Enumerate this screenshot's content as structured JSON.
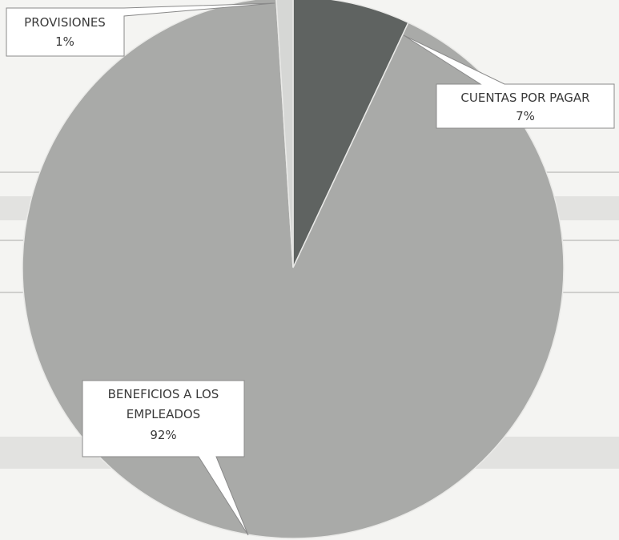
{
  "chart_data": {
    "type": "pie",
    "title": "",
    "slices": [
      {
        "label": "CUENTAS POR PAGAR",
        "value": 7,
        "display": "7%",
        "color": "#5f6361"
      },
      {
        "label": "BENEFICIOS A LOS EMPLEADOS",
        "value": 92,
        "display": "92%",
        "color": "#a9aaa8"
      },
      {
        "label": "PROVISIONES",
        "value": 1,
        "display": "1%",
        "color": "#d6d7d5"
      }
    ],
    "start_angle_deg": 0,
    "direction": "clockwise",
    "legend": "callout labels"
  }
}
